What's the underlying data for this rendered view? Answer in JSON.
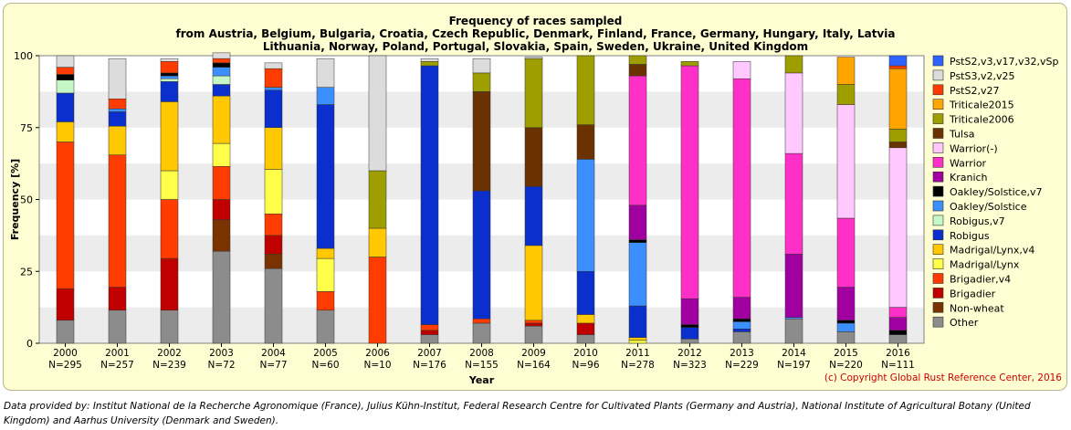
{
  "chart_data": {
    "type": "bar",
    "stacked": true,
    "title_lines": [
      "Frequency of races sampled",
      "from Austria, Belgium, Bulgaria, Croatia, Czech Republic, Denmark, Finland, France, Germany, Hungary, Italy, Latvia",
      "Lithuania, Norway, Poland, Portugal, Slovakia, Spain, Sweden, Ukraine, United Kingdom"
    ],
    "xlabel": "Year",
    "ylabel": "Frequency [%]",
    "ylim": [
      0,
      100
    ],
    "yticks": [
      0,
      25,
      50,
      75,
      100
    ],
    "legend_position": "right",
    "categories": [
      "2000",
      "2001",
      "2002",
      "2003",
      "2004",
      "2005",
      "2006",
      "2007",
      "2008",
      "2009",
      "2010",
      "2011",
      "2012",
      "2013",
      "2014",
      "2015",
      "2016"
    ],
    "n_labels": [
      "N=295",
      "N=257",
      "N=239",
      "N=72",
      "N=77",
      "N=60",
      "N=10",
      "N=176",
      "N=155",
      "N=164",
      "N=96",
      "N=278",
      "N=323",
      "N=229",
      "N=197",
      "N=220",
      "N=111"
    ],
    "series": [
      {
        "name": "Other",
        "color": "#8c8c8c",
        "values": [
          8,
          11.5,
          11.5,
          32,
          26,
          11.5,
          0,
          3,
          7,
          6,
          3,
          0,
          1.5,
          4,
          8.5,
          4,
          3
        ]
      },
      {
        "name": "Non-wheat",
        "color": "#7a3300",
        "values": [
          0,
          0,
          0,
          11,
          5,
          0,
          0,
          0,
          0,
          0,
          0,
          0,
          0,
          0,
          0,
          0,
          0
        ]
      },
      {
        "name": "Brigadier",
        "color": "#c00000",
        "values": [
          11,
          8,
          18,
          7,
          6.5,
          0,
          0,
          1.5,
          0,
          1,
          4,
          0,
          0,
          0,
          0,
          0,
          0
        ]
      },
      {
        "name": "Brigadier,v4",
        "color": "#ff3c00",
        "values": [
          51,
          46,
          20.5,
          11.5,
          7.5,
          6.5,
          30,
          2,
          1.5,
          1,
          0,
          0,
          0,
          0,
          0,
          0,
          0
        ]
      },
      {
        "name": "Madrigal/Lynx",
        "color": "#ffff4a",
        "values": [
          0,
          0,
          10,
          8,
          15.5,
          11.5,
          0,
          0,
          0,
          0,
          0,
          1,
          0,
          0,
          0,
          0,
          0
        ]
      },
      {
        "name": "Madrigal/Lynx,v4",
        "color": "#ffc800",
        "values": [
          7,
          10,
          24,
          16.5,
          14.5,
          3.5,
          10,
          0,
          0,
          26,
          3,
          1,
          0,
          0,
          0,
          0,
          0
        ]
      },
      {
        "name": "Robigus",
        "color": "#0a2fcc",
        "values": [
          10,
          5,
          7,
          4,
          13,
          50,
          0,
          90,
          44.5,
          20.5,
          15,
          11,
          4,
          1,
          0,
          0,
          0
        ]
      },
      {
        "name": "Robigus,v7",
        "color": "#c6f7c6",
        "values": [
          4.5,
          0,
          1,
          3,
          0,
          0,
          0,
          0,
          0,
          0,
          0,
          0,
          0,
          0,
          0,
          0,
          0
        ]
      },
      {
        "name": "Oakley/Solstice",
        "color": "#3c8fff",
        "values": [
          0,
          1,
          1,
          3,
          1,
          6,
          0,
          0,
          0,
          0,
          39,
          22,
          0,
          2.5,
          0.5,
          3,
          0
        ]
      },
      {
        "name": "Oakley/Solstice,v7",
        "color": "#000000",
        "values": [
          2,
          0,
          1,
          1.5,
          0,
          0,
          0,
          0,
          0,
          0,
          0,
          1,
          1,
          1,
          0,
          1,
          1.5
        ]
      },
      {
        "name": "Kranich",
        "color": "#a000a0",
        "values": [
          0,
          0,
          0,
          0,
          0,
          0,
          0,
          0,
          0,
          0,
          0,
          12,
          9,
          7.5,
          22,
          11.5,
          4.5
        ]
      },
      {
        "name": "Warrior",
        "color": "#ff30c8",
        "values": [
          0,
          0,
          0,
          0,
          0,
          0,
          0,
          0,
          0,
          0,
          0,
          45,
          81,
          76,
          35,
          24,
          3.5
        ]
      },
      {
        "name": "Warrior(-)",
        "color": "#ffc8ff",
        "values": [
          0,
          0,
          0,
          0,
          0,
          0,
          0,
          0,
          0,
          0,
          0,
          0,
          0,
          6,
          28,
          39.5,
          55.5
        ]
      },
      {
        "name": "Tulsa",
        "color": "#6a3200",
        "values": [
          0,
          0,
          0,
          0,
          0,
          0,
          0,
          0,
          34.5,
          20.5,
          12,
          4,
          0,
          0,
          0,
          0,
          2
        ]
      },
      {
        "name": "Triticale2006",
        "color": "#9e9e00",
        "values": [
          0,
          0,
          0,
          0,
          0,
          0,
          20,
          1.5,
          6.5,
          24,
          24,
          3,
          1.5,
          0,
          6,
          7,
          4.5
        ]
      },
      {
        "name": "Triticale2015",
        "color": "#ffa500",
        "values": [
          0,
          0,
          0,
          0,
          0,
          0,
          0,
          0,
          0,
          0,
          0,
          0,
          0,
          0,
          0,
          9.5,
          21
        ]
      },
      {
        "name": "PstS2,v27",
        "color": "#ff3c00",
        "values": [
          2.5,
          3.5,
          4,
          1.5,
          6.5,
          0,
          0,
          0,
          0,
          0,
          0,
          0,
          0,
          0,
          0,
          0,
          1
        ]
      },
      {
        "name": "PstS3,v2,v25",
        "color": "#dcdcdc",
        "values": [
          4,
          14,
          1,
          2,
          2,
          10,
          40,
          1,
          5,
          0.5,
          0,
          0,
          0,
          0,
          0,
          0,
          0
        ]
      },
      {
        "name": "PstS2,v3,v17,v32,vSp",
        "color": "#2e63ff",
        "values": [
          0,
          0,
          0,
          0,
          0,
          0,
          0,
          0,
          0,
          0,
          0,
          0,
          0,
          0,
          0,
          0,
          3.5
        ]
      }
    ],
    "legend_order": [
      "PstS2,v3,v17,v32,vSp",
      "PstS3,v2,v25",
      "PstS2,v27",
      "Triticale2015",
      "Triticale2006",
      "Tulsa",
      "Warrior(-)",
      "Warrior",
      "Kranich",
      "Oakley/Solstice,v7",
      "Oakley/Solstice",
      "Robigus,v7",
      "Robigus",
      "Madrigal/Lynx,v4",
      "Madrigal/Lynx",
      "Brigadier,v4",
      "Brigadier",
      "Non-wheat",
      "Other"
    ]
  },
  "copyright": "(c) Copyright Global Rust Reference Center, 2016",
  "footnote": "Data provided by: Institut National de la Recherche Agronomique (France), Julius Kühn-Institut, Federal Research Centre for Cultivated Plants (Germany and Austria), National Institute of Agricultural Botany (United Kingdom) and Aarhus University (Denmark and Sweden)."
}
